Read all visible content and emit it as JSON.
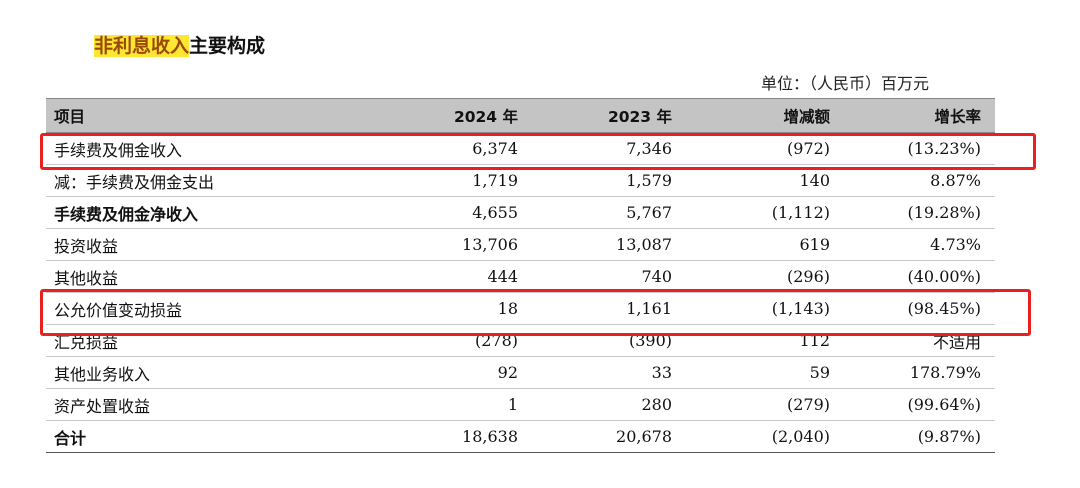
{
  "title": {
    "highlighted": "非利息收入",
    "rest": "主要构成"
  },
  "unit_label": "单位：（人民币）百万元",
  "table": {
    "headers": [
      "项目",
      "2024 年",
      "2023 年",
      "增减额",
      "增长率"
    ],
    "rows": [
      {
        "label": "手续费及佣金收入",
        "c2024": "6,374",
        "c2023": "7,346",
        "change": "(972)",
        "rate": "(13.23%)",
        "bold": false
      },
      {
        "label": "减：手续费及佣金支出",
        "c2024": "1,719",
        "c2023": "1,579",
        "change": "140",
        "rate": "8.87%",
        "bold": false
      },
      {
        "label": "手续费及佣金净收入",
        "c2024": "4,655",
        "c2023": "5,767",
        "change": "(1,112)",
        "rate": "(19.28%)",
        "bold": true
      },
      {
        "label": "投资收益",
        "c2024": "13,706",
        "c2023": "13,087",
        "change": "619",
        "rate": "4.73%",
        "bold": false
      },
      {
        "label": "其他收益",
        "c2024": "444",
        "c2023": "740",
        "change": "(296)",
        "rate": "(40.00%)",
        "bold": false
      },
      {
        "label": "公允价值变动损益",
        "c2024": "18",
        "c2023": "1,161",
        "change": "(1,143)",
        "rate": "(98.45%)",
        "bold": false
      },
      {
        "label": "汇兑损益",
        "c2024": "(278)",
        "c2023": "(390)",
        "change": "112",
        "rate": "不适用",
        "bold": false
      },
      {
        "label": "其他业务收入",
        "c2024": "92",
        "c2023": "33",
        "change": "59",
        "rate": "178.79%",
        "bold": false
      },
      {
        "label": "资产处置收益",
        "c2024": "1",
        "c2023": "280",
        "change": "(279)",
        "rate": "(99.64%)",
        "bold": false
      },
      {
        "label": "合计",
        "c2024": "18,638",
        "c2023": "20,678",
        "change": "(2,040)",
        "rate": "(9.87%)",
        "bold": true
      }
    ]
  },
  "annotations": {
    "box_color": "#e8201e",
    "highlight_color": "#fde733"
  }
}
